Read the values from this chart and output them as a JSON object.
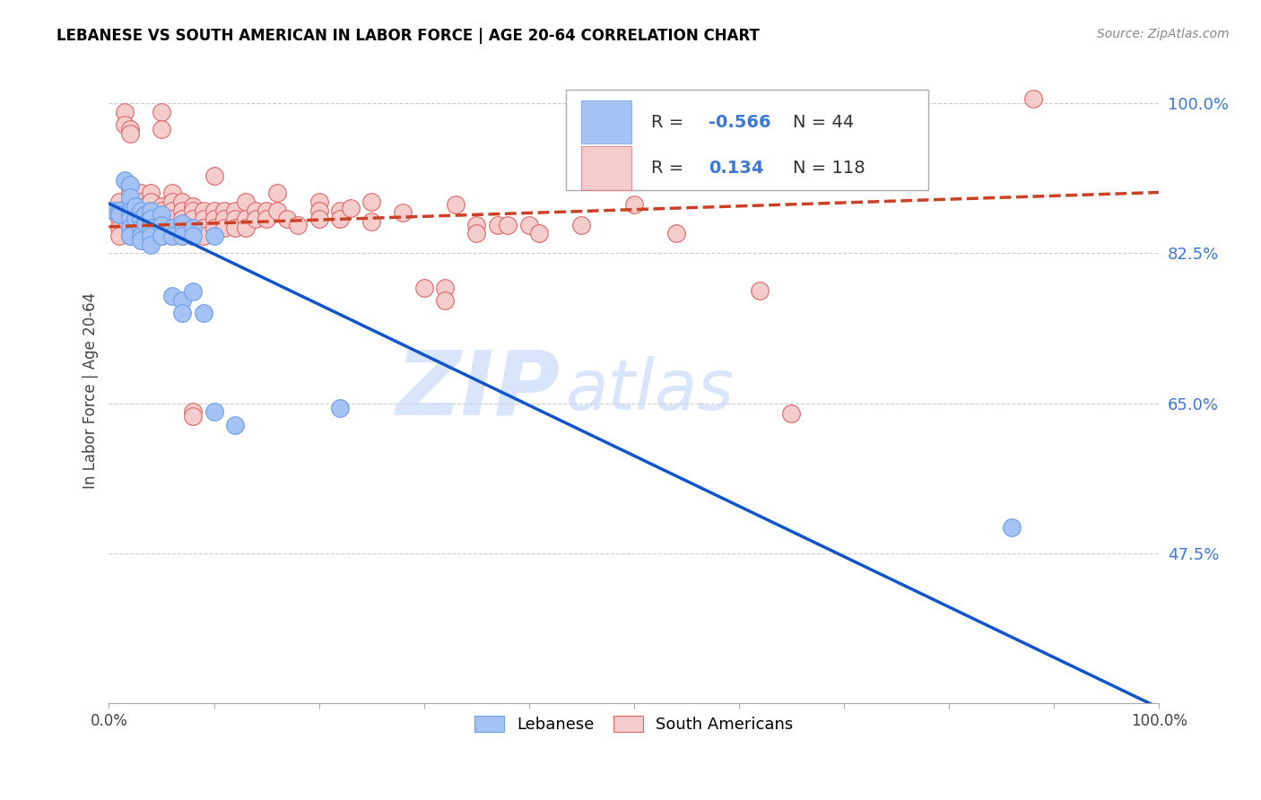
{
  "title": "LEBANESE VS SOUTH AMERICAN IN LABOR FORCE | AGE 20-64 CORRELATION CHART",
  "source": "Source: ZipAtlas.com",
  "ylabel": "In Labor Force | Age 20-64",
  "xlim": [
    0,
    1
  ],
  "ylim": [
    0.3,
    1.03
  ],
  "yticks": [
    0.475,
    0.65,
    0.825,
    1.0
  ],
  "ytick_labels": [
    "47.5%",
    "65.0%",
    "82.5%",
    "100.0%"
  ],
  "xticks": [
    0.0,
    0.1,
    0.2,
    0.3,
    0.4,
    0.5,
    0.6,
    0.7,
    0.8,
    0.9,
    1.0
  ],
  "xtick_labels": [
    "0.0%",
    "",
    "",
    "",
    "",
    "",
    "",
    "",
    "",
    "",
    "100.0%"
  ],
  "background_color": "#ffffff",
  "watermark_zip": "ZIP",
  "watermark_atlas": "atlas",
  "legend_R_leb": "-0.566",
  "legend_N_leb": "44",
  "legend_R_sa": "0.134",
  "legend_N_sa": "118",
  "leb_color": "#a4c2f4",
  "sa_color": "#f4cccc",
  "leb_edge_color": "#6d9eeb",
  "sa_edge_color": "#e06666",
  "leb_line_color": "#1155cc",
  "sa_line_color": "#cc4125",
  "leb_scatter": [
    [
      0.005,
      0.875
    ],
    [
      0.01,
      0.875
    ],
    [
      0.01,
      0.87
    ],
    [
      0.015,
      0.91
    ],
    [
      0.02,
      0.905
    ],
    [
      0.02,
      0.89
    ],
    [
      0.02,
      0.875
    ],
    [
      0.02,
      0.87
    ],
    [
      0.02,
      0.865
    ],
    [
      0.02,
      0.855
    ],
    [
      0.02,
      0.845
    ],
    [
      0.025,
      0.88
    ],
    [
      0.025,
      0.865
    ],
    [
      0.03,
      0.875
    ],
    [
      0.03,
      0.865
    ],
    [
      0.03,
      0.855
    ],
    [
      0.03,
      0.845
    ],
    [
      0.03,
      0.84
    ],
    [
      0.035,
      0.87
    ],
    [
      0.035,
      0.86
    ],
    [
      0.04,
      0.875
    ],
    [
      0.04,
      0.865
    ],
    [
      0.04,
      0.855
    ],
    [
      0.04,
      0.845
    ],
    [
      0.04,
      0.835
    ],
    [
      0.05,
      0.87
    ],
    [
      0.05,
      0.858
    ],
    [
      0.05,
      0.845
    ],
    [
      0.06,
      0.855
    ],
    [
      0.06,
      0.845
    ],
    [
      0.06,
      0.775
    ],
    [
      0.07,
      0.86
    ],
    [
      0.07,
      0.845
    ],
    [
      0.07,
      0.77
    ],
    [
      0.07,
      0.755
    ],
    [
      0.08,
      0.855
    ],
    [
      0.08,
      0.845
    ],
    [
      0.08,
      0.78
    ],
    [
      0.09,
      0.755
    ],
    [
      0.1,
      0.845
    ],
    [
      0.1,
      0.64
    ],
    [
      0.12,
      0.625
    ],
    [
      0.22,
      0.645
    ],
    [
      0.86,
      0.505
    ]
  ],
  "sa_scatter": [
    [
      0.005,
      0.875
    ],
    [
      0.01,
      0.885
    ],
    [
      0.01,
      0.875
    ],
    [
      0.01,
      0.865
    ],
    [
      0.01,
      0.855
    ],
    [
      0.01,
      0.845
    ],
    [
      0.015,
      0.99
    ],
    [
      0.015,
      0.975
    ],
    [
      0.02,
      0.97
    ],
    [
      0.02,
      0.965
    ],
    [
      0.02,
      0.9
    ],
    [
      0.02,
      0.895
    ],
    [
      0.02,
      0.885
    ],
    [
      0.02,
      0.875
    ],
    [
      0.02,
      0.865
    ],
    [
      0.02,
      0.855
    ],
    [
      0.02,
      0.845
    ],
    [
      0.025,
      0.88
    ],
    [
      0.025,
      0.875
    ],
    [
      0.025,
      0.865
    ],
    [
      0.03,
      0.895
    ],
    [
      0.03,
      0.885
    ],
    [
      0.03,
      0.875
    ],
    [
      0.03,
      0.865
    ],
    [
      0.03,
      0.855
    ],
    [
      0.03,
      0.845
    ],
    [
      0.035,
      0.88
    ],
    [
      0.035,
      0.875
    ],
    [
      0.035,
      0.865
    ],
    [
      0.04,
      0.895
    ],
    [
      0.04,
      0.885
    ],
    [
      0.04,
      0.875
    ],
    [
      0.04,
      0.865
    ],
    [
      0.04,
      0.855
    ],
    [
      0.04,
      0.845
    ],
    [
      0.045,
      0.875
    ],
    [
      0.045,
      0.865
    ],
    [
      0.05,
      0.99
    ],
    [
      0.05,
      0.97
    ],
    [
      0.05,
      0.88
    ],
    [
      0.05,
      0.875
    ],
    [
      0.05,
      0.865
    ],
    [
      0.05,
      0.855
    ],
    [
      0.05,
      0.845
    ],
    [
      0.06,
      0.895
    ],
    [
      0.06,
      0.885
    ],
    [
      0.06,
      0.875
    ],
    [
      0.06,
      0.865
    ],
    [
      0.06,
      0.855
    ],
    [
      0.06,
      0.845
    ],
    [
      0.07,
      0.885
    ],
    [
      0.07,
      0.875
    ],
    [
      0.07,
      0.865
    ],
    [
      0.07,
      0.855
    ],
    [
      0.07,
      0.845
    ],
    [
      0.08,
      0.88
    ],
    [
      0.08,
      0.875
    ],
    [
      0.08,
      0.865
    ],
    [
      0.08,
      0.855
    ],
    [
      0.08,
      0.845
    ],
    [
      0.08,
      0.64
    ],
    [
      0.08,
      0.635
    ],
    [
      0.09,
      0.875
    ],
    [
      0.09,
      0.865
    ],
    [
      0.09,
      0.855
    ],
    [
      0.09,
      0.845
    ],
    [
      0.1,
      0.915
    ],
    [
      0.1,
      0.875
    ],
    [
      0.1,
      0.865
    ],
    [
      0.1,
      0.855
    ],
    [
      0.11,
      0.875
    ],
    [
      0.11,
      0.865
    ],
    [
      0.11,
      0.855
    ],
    [
      0.12,
      0.875
    ],
    [
      0.12,
      0.865
    ],
    [
      0.12,
      0.855
    ],
    [
      0.13,
      0.885
    ],
    [
      0.13,
      0.865
    ],
    [
      0.13,
      0.855
    ],
    [
      0.14,
      0.875
    ],
    [
      0.14,
      0.865
    ],
    [
      0.15,
      0.875
    ],
    [
      0.15,
      0.865
    ],
    [
      0.16,
      0.895
    ],
    [
      0.16,
      0.875
    ],
    [
      0.17,
      0.865
    ],
    [
      0.18,
      0.858
    ],
    [
      0.2,
      0.885
    ],
    [
      0.2,
      0.875
    ],
    [
      0.2,
      0.865
    ],
    [
      0.22,
      0.875
    ],
    [
      0.22,
      0.865
    ],
    [
      0.23,
      0.878
    ],
    [
      0.25,
      0.885
    ],
    [
      0.25,
      0.862
    ],
    [
      0.28,
      0.872
    ],
    [
      0.3,
      0.785
    ],
    [
      0.32,
      0.785
    ],
    [
      0.32,
      0.77
    ],
    [
      0.33,
      0.882
    ],
    [
      0.35,
      0.858
    ],
    [
      0.35,
      0.848
    ],
    [
      0.37,
      0.858
    ],
    [
      0.38,
      0.858
    ],
    [
      0.4,
      0.858
    ],
    [
      0.41,
      0.848
    ],
    [
      0.45,
      0.858
    ],
    [
      0.5,
      0.882
    ],
    [
      0.54,
      0.848
    ],
    [
      0.62,
      0.782
    ],
    [
      0.65,
      0.638
    ],
    [
      0.88,
      1.005
    ]
  ],
  "leb_trendline": [
    [
      0.0,
      0.883
    ],
    [
      1.0,
      0.295
    ]
  ],
  "sa_trendline": [
    [
      0.0,
      0.856
    ],
    [
      1.0,
      0.896
    ]
  ]
}
